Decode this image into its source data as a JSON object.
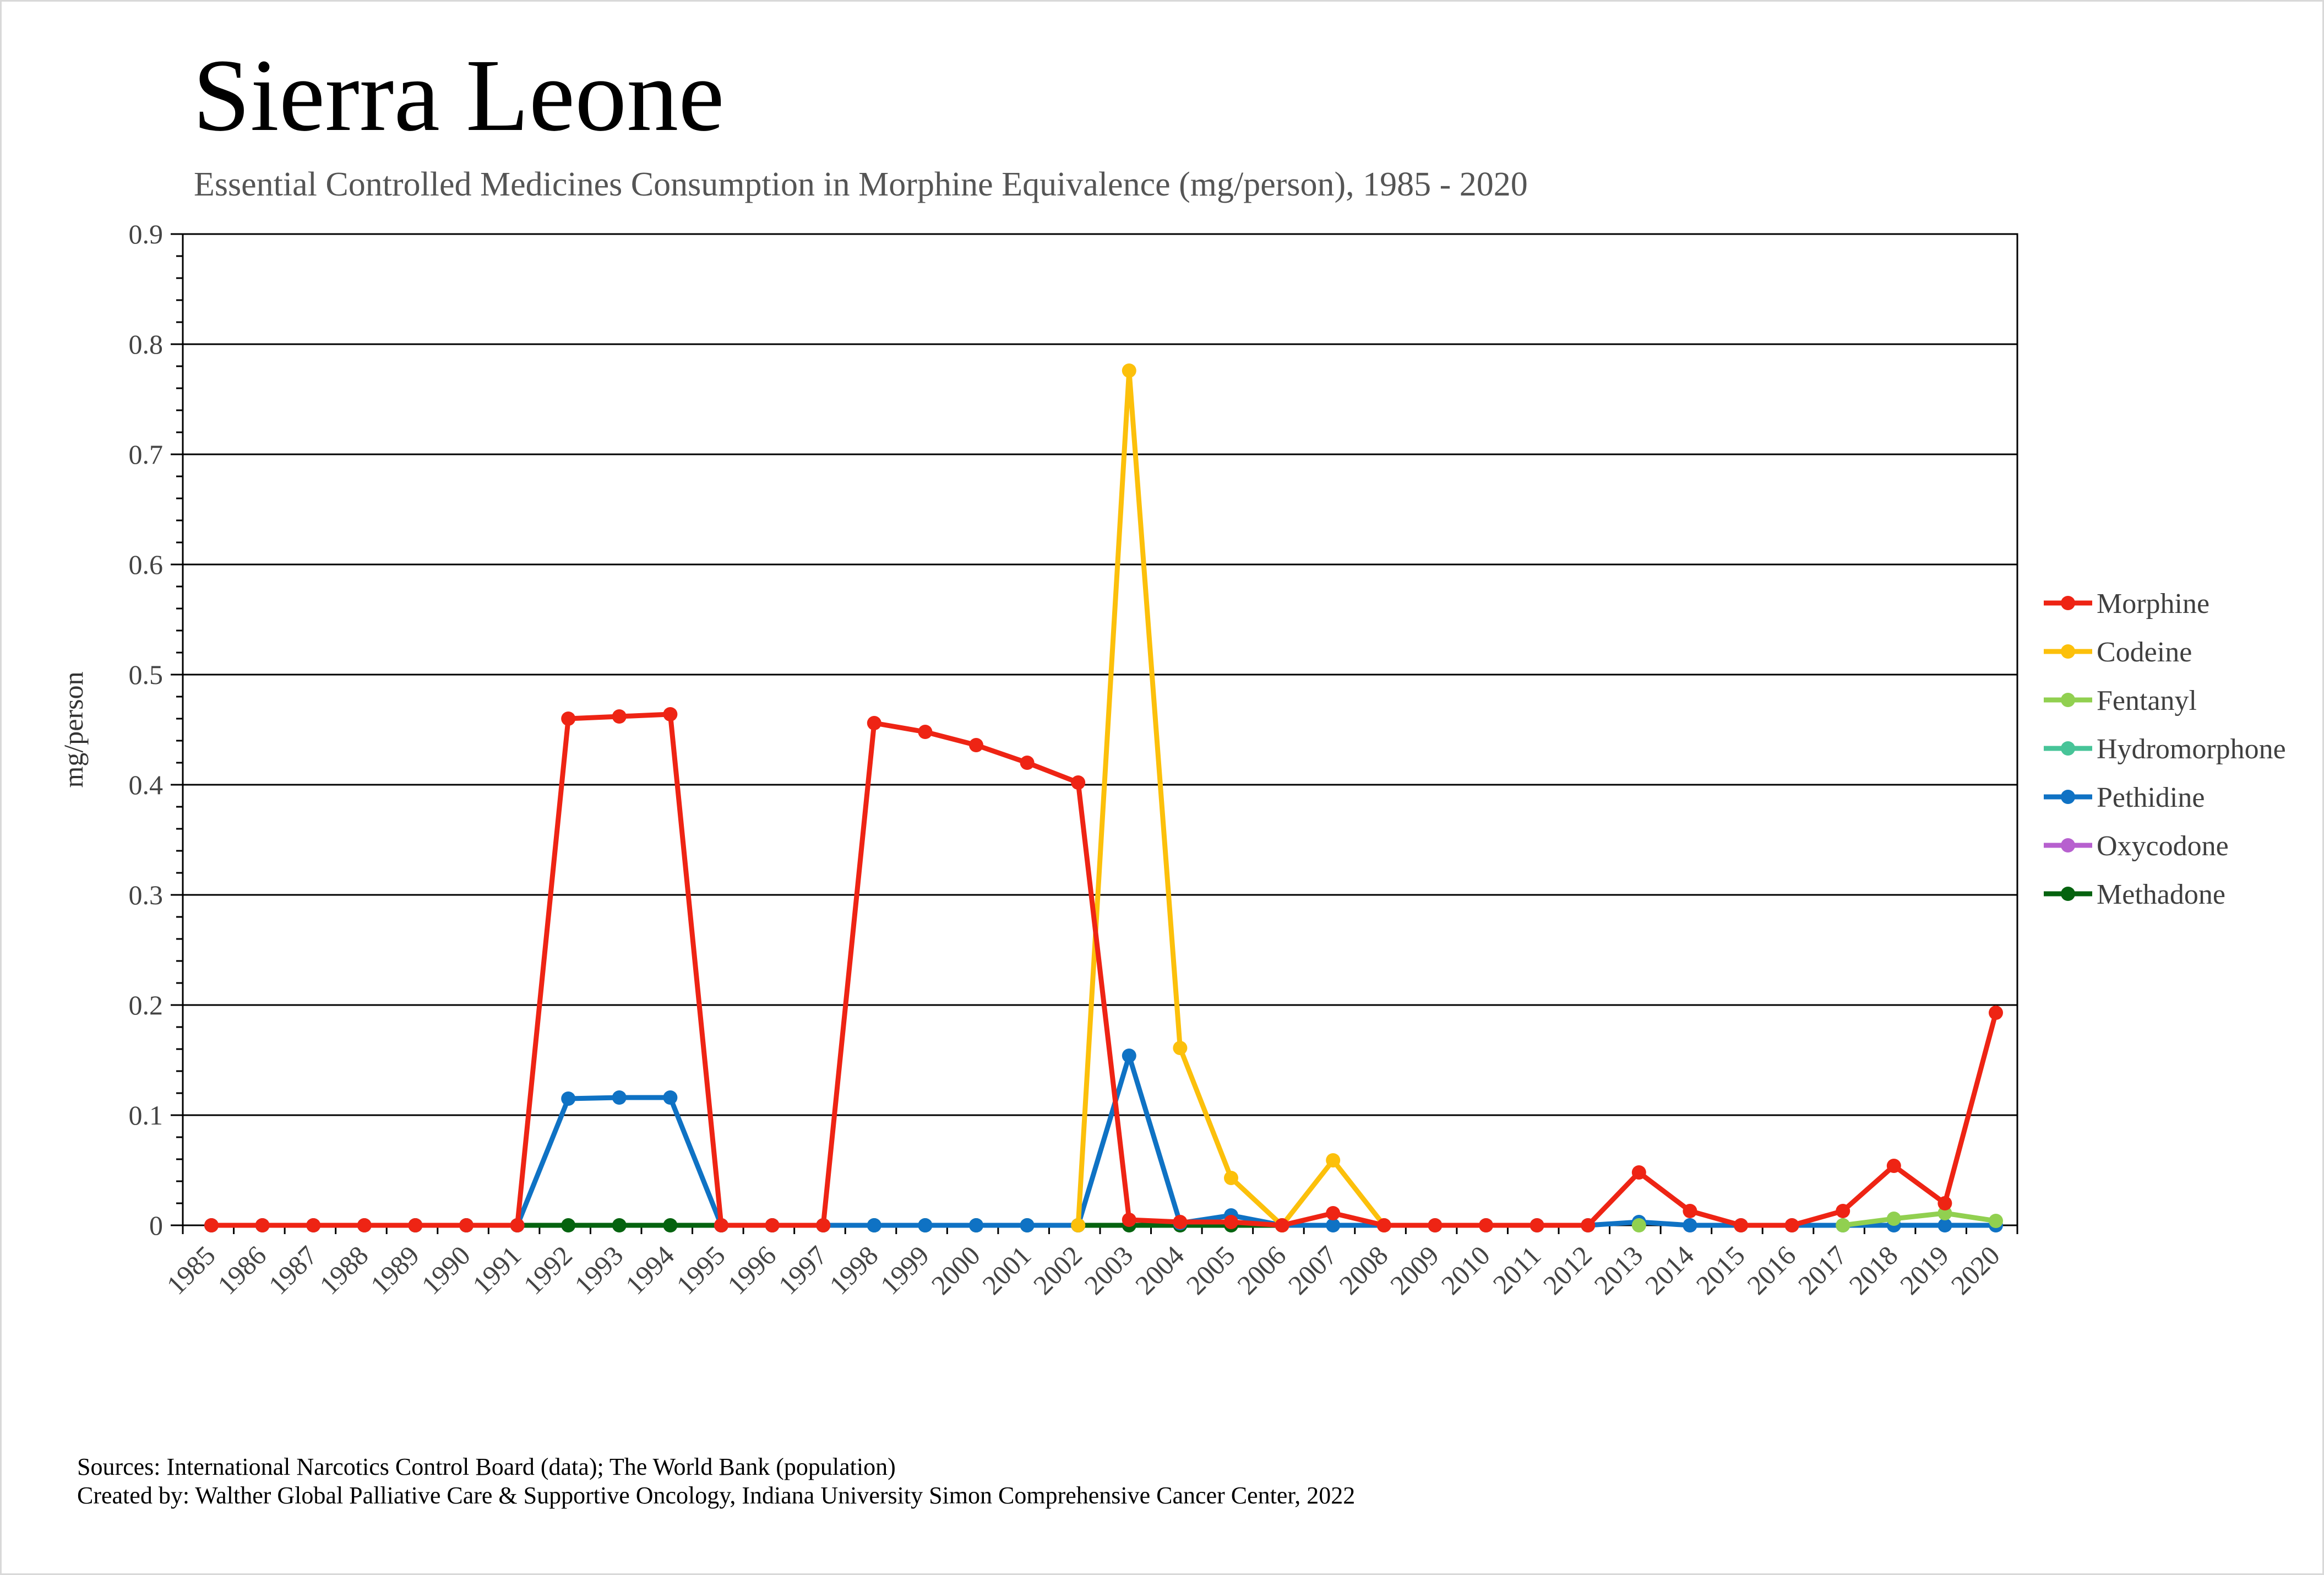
{
  "chart_data": {
    "type": "line",
    "title": "Sierra Leone",
    "subtitle": "Essential Controlled Medicines Consumption in Morphine Equivalence (mg/person), 1985 - 2020",
    "xlabel": "",
    "ylabel": "mg/person",
    "ylim": [
      0,
      0.9
    ],
    "yticks": [
      "0",
      "0.1",
      "0.2",
      "0.3",
      "0.4",
      "0.5",
      "0.6",
      "0.7",
      "0.8",
      "0.9"
    ],
    "grid": true,
    "legend_position": "right",
    "categories": [
      "1985",
      "1986",
      "1987",
      "1988",
      "1989",
      "1990",
      "1991",
      "1992",
      "1993",
      "1994",
      "1995",
      "1996",
      "1997",
      "1998",
      "1999",
      "2000",
      "2001",
      "2002",
      "2003",
      "2004",
      "2005",
      "2006",
      "2007",
      "2008",
      "2009",
      "2010",
      "2011",
      "2012",
      "2013",
      "2014",
      "2015",
      "2016",
      "2017",
      "2018",
      "2019",
      "2020"
    ],
    "series": [
      {
        "name": "Morphine",
        "color": "#ee2414",
        "values": [
          0,
          0,
          0,
          0,
          0,
          0,
          0,
          0.46,
          0.462,
          0.464,
          0,
          0,
          0,
          0.456,
          0.448,
          0.436,
          0.42,
          0.402,
          0.005,
          0.003,
          0.003,
          0,
          0.011,
          0,
          0,
          0,
          0,
          0,
          0.048,
          0.013,
          0,
          0,
          0.013,
          0.054,
          0.02,
          0.193
        ]
      },
      {
        "name": "Codeine",
        "color": "#fcc00b",
        "values": [
          null,
          null,
          null,
          null,
          null,
          null,
          null,
          null,
          null,
          null,
          null,
          null,
          null,
          null,
          null,
          null,
          null,
          0,
          0.776,
          0.161,
          0.043,
          0,
          0.059,
          0,
          null,
          null,
          null,
          null,
          null,
          null,
          null,
          null,
          null,
          null,
          null,
          null
        ]
      },
      {
        "name": "Fentanyl",
        "color": "#91d050",
        "values": [
          null,
          null,
          null,
          null,
          null,
          null,
          null,
          null,
          null,
          null,
          null,
          null,
          null,
          null,
          null,
          null,
          null,
          null,
          null,
          null,
          null,
          null,
          null,
          null,
          null,
          null,
          null,
          null,
          0,
          null,
          null,
          null,
          0,
          0.006,
          0.011,
          0.004
        ]
      },
      {
        "name": "Hydromorphone",
        "color": "#47c498",
        "values": [
          null,
          null,
          null,
          null,
          null,
          null,
          null,
          null,
          null,
          null,
          null,
          null,
          null,
          null,
          null,
          null,
          null,
          null,
          null,
          null,
          null,
          null,
          null,
          null,
          null,
          null,
          null,
          null,
          null,
          null,
          null,
          null,
          null,
          null,
          null,
          null
        ]
      },
      {
        "name": "Pethidine",
        "color": "#0f72c4",
        "values": [
          0,
          0,
          0,
          0,
          0,
          0,
          0,
          0.115,
          0.116,
          0.116,
          0,
          0,
          0,
          0,
          0,
          0,
          0,
          0,
          0.154,
          0.002,
          0.009,
          0,
          0,
          0,
          0,
          0,
          0,
          0,
          0.003,
          0,
          0,
          0,
          0,
          0,
          0,
          0
        ]
      },
      {
        "name": "Oxycodone",
        "color": "#b760cf",
        "values": [
          null,
          null,
          null,
          null,
          null,
          null,
          null,
          null,
          null,
          null,
          null,
          null,
          null,
          null,
          null,
          null,
          null,
          null,
          null,
          null,
          null,
          null,
          null,
          null,
          null,
          null,
          null,
          null,
          null,
          0,
          null,
          null,
          null,
          null,
          null,
          null
        ]
      },
      {
        "name": "Methadone",
        "color": "#05630f",
        "values": [
          null,
          null,
          null,
          null,
          0,
          0,
          0,
          0,
          0,
          0,
          0,
          0,
          0,
          0,
          0,
          0,
          0,
          0,
          0,
          0,
          0,
          0,
          null,
          null,
          null,
          null,
          null,
          null,
          null,
          null,
          null,
          null,
          null,
          null,
          null,
          null
        ]
      }
    ]
  },
  "sources": {
    "line1": "Sources: International Narcotics Control Board (data); The World Bank (population)",
    "line2": "Created by: Walther Global Palliative Care & Supportive Oncology, Indiana University Simon Comprehensive Cancer Center, 2022"
  }
}
